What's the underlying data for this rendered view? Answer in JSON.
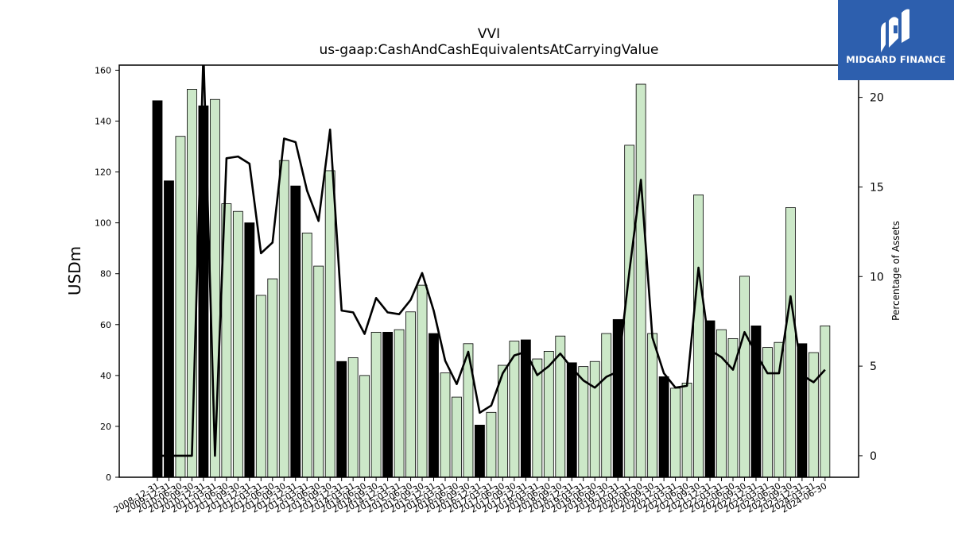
{
  "brand": {
    "name": "MIDGARD FINANCE",
    "logo_icon": "midgard-m-logo-icon",
    "bg_color": "#2d5fae"
  },
  "chart_data": {
    "type": "bar",
    "title": "VVI",
    "subtitle": "us-gaap:CashAndCashEquivalentsAtCarryingValue",
    "ylabel": "USDm",
    "y2label": "Percentage of Assets",
    "ylim": [
      0,
      162
    ],
    "y2lim": [
      -1.2,
      21.8
    ],
    "yticks": [
      0,
      20,
      40,
      60,
      80,
      100,
      120,
      140,
      160
    ],
    "y2ticks": [
      0,
      5,
      10,
      15,
      20
    ],
    "grid": false,
    "colors": {
      "annual_bar": "#000000",
      "quarter_bar": "#cce8c8",
      "bar_edge": "#000000",
      "line": "#000000"
    },
    "categories": [
      "2008-12-31",
      "2009-12-31",
      "2010-06-30",
      "2010-09-30",
      "2010-12-31",
      "2011-03-31",
      "2011-06-30",
      "2011-09-30",
      "2011-12-31",
      "2012-03-31",
      "2012-06-30",
      "2012-09-30",
      "2012-12-31",
      "2013-03-31",
      "2013-06-30",
      "2013-09-30",
      "2013-12-31",
      "2014-03-31",
      "2014-06-30",
      "2014-09-30",
      "2014-12-31",
      "2015-03-31",
      "2015-06-30",
      "2015-09-30",
      "2015-12-31",
      "2016-03-31",
      "2016-06-30",
      "2016-09-30",
      "2016-12-31",
      "2017-03-31",
      "2017-06-30",
      "2017-09-30",
      "2017-12-31",
      "2018-03-31",
      "2018-06-30",
      "2018-09-30",
      "2018-12-31",
      "2019-03-31",
      "2019-06-30",
      "2019-09-30",
      "2019-12-31",
      "2020-03-31",
      "2020-06-30",
      "2020-09-30",
      "2020-12-31",
      "2021-03-31",
      "2021-06-30",
      "2021-09-30",
      "2021-12-31",
      "2022-03-31",
      "2022-06-30",
      "2022-09-30",
      "2022-12-31",
      "2023-03-31",
      "2023-06-30",
      "2023-09-30",
      "2023-12-31",
      "2024-03-31",
      "2024-06-30"
    ],
    "annual": [
      true,
      true,
      false,
      false,
      true,
      false,
      false,
      false,
      true,
      false,
      false,
      false,
      true,
      false,
      false,
      false,
      true,
      false,
      false,
      false,
      true,
      false,
      false,
      false,
      true,
      false,
      false,
      false,
      true,
      false,
      false,
      false,
      true,
      false,
      false,
      false,
      true,
      false,
      false,
      false,
      true,
      false,
      false,
      false,
      true,
      false,
      false,
      false,
      true,
      false,
      false,
      false,
      true,
      false,
      false,
      false,
      true,
      false,
      false
    ],
    "series": [
      {
        "name": "USDm",
        "type": "bar",
        "values": [
          148,
          116.5,
          134,
          152.5,
          146,
          148.5,
          107.5,
          104.5,
          100,
          71.5,
          78,
          124.5,
          114.5,
          96,
          83,
          120.5,
          45.5,
          47,
          40,
          57,
          57,
          58,
          65,
          75.5,
          56.5,
          41,
          31.5,
          52.5,
          20.5,
          25.5,
          44,
          53.5,
          54,
          46.5,
          49.5,
          55.5,
          45,
          43.5,
          45.5,
          56.5,
          62,
          130.5,
          154.5,
          56.5,
          39.5,
          35,
          37,
          111,
          61.5,
          58,
          54.5,
          79,
          59.5,
          51,
          53,
          106,
          52.5,
          49,
          59.5
        ]
      },
      {
        "name": "Percentage of Assets",
        "type": "line",
        "values": [
          0,
          0,
          0,
          0,
          22.5,
          0,
          16.6,
          16.7,
          16.3,
          11.3,
          11.9,
          17.7,
          17.5,
          14.8,
          13.1,
          18.2,
          8.1,
          8.0,
          6.8,
          8.8,
          8.0,
          7.9,
          8.7,
          10.2,
          8.1,
          5.3,
          4.0,
          5.8,
          2.4,
          2.8,
          4.6,
          5.6,
          5.8,
          4.5,
          5.0,
          5.7,
          4.9,
          4.2,
          3.8,
          4.4,
          4.7,
          10.3,
          15.4,
          6.6,
          4.6,
          3.8,
          3.9,
          10.5,
          5.9,
          5.5,
          4.8,
          6.9,
          5.7,
          4.6,
          4.6,
          8.9,
          4.5,
          4.1,
          4.8
        ]
      }
    ]
  }
}
